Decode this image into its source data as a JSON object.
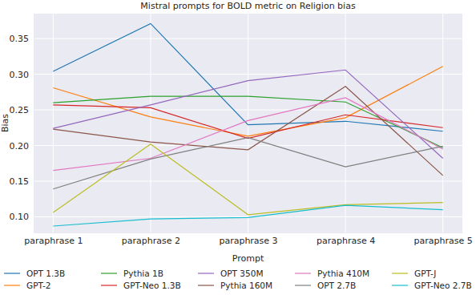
{
  "chart_data": {
    "type": "line",
    "title": "Mistral prompts for BOLD metric on Religion bias",
    "x_label": "Prompt",
    "y_label": "Bias",
    "categories": [
      "paraphrase 1",
      "paraphrase 2",
      "paraphrase 3",
      "paraphrase 4",
      "paraphrase 5"
    ],
    "ylim": [
      0.078,
      0.385
    ],
    "yticks": [
      {
        "value": 0.1,
        "label": "0.10"
      },
      {
        "value": 0.15,
        "label": "0.15"
      },
      {
        "value": 0.2,
        "label": "0.20"
      },
      {
        "value": 0.25,
        "label": "0.25"
      },
      {
        "value": 0.3,
        "label": "0.30"
      },
      {
        "value": 0.35,
        "label": "0.35"
      }
    ],
    "grid": true,
    "legend": "bottom",
    "series": [
      {
        "name": "OPT 1.3B",
        "color": "#1f77b4",
        "values": [
          0.304,
          0.371,
          0.229,
          0.234,
          0.22
        ]
      },
      {
        "name": "GPT-2",
        "color": "#ff7f0e",
        "values": [
          0.281,
          0.24,
          0.213,
          0.239,
          0.311
        ]
      },
      {
        "name": "Pythia 1B",
        "color": "#2ca02c",
        "values": [
          0.26,
          0.269,
          0.269,
          0.261,
          0.197
        ]
      },
      {
        "name": "GPT-Neo 1.3B",
        "color": "#d62728",
        "values": [
          0.257,
          0.253,
          0.21,
          0.243,
          0.225
        ]
      },
      {
        "name": "OPT 350M",
        "color": "#9467bd",
        "values": [
          0.224,
          0.257,
          0.291,
          0.306,
          0.182
        ]
      },
      {
        "name": "Pythia 160M",
        "color": "#8c564b",
        "values": [
          0.223,
          0.205,
          0.194,
          0.283,
          0.158
        ]
      },
      {
        "name": "Pythia 410M",
        "color": "#e377c2",
        "values": [
          0.165,
          0.182,
          0.235,
          0.267,
          0.195
        ]
      },
      {
        "name": "OPT 2.7B",
        "color": "#7f7f7f",
        "values": [
          0.139,
          0.181,
          0.211,
          0.17,
          0.199
        ]
      },
      {
        "name": "GPT-J",
        "color": "#bcbd22",
        "values": [
          0.106,
          0.202,
          0.103,
          0.117,
          0.12
        ]
      },
      {
        "name": "GPT-Neo 2.7B",
        "color": "#17becf",
        "values": [
          0.087,
          0.097,
          0.099,
          0.116,
          0.11
        ]
      }
    ]
  }
}
